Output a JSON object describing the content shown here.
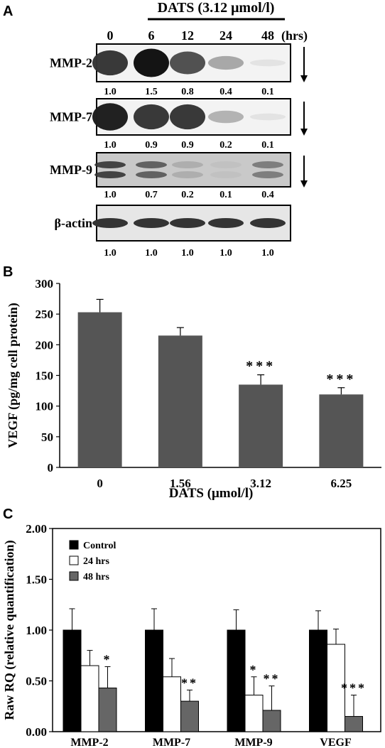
{
  "panel_a": {
    "letter": "A",
    "treatment_label": "DATS (3.12 μmol/l)",
    "time_labels": [
      "0",
      "6",
      "12",
      "24",
      "48"
    ],
    "time_unit": "(hrs)",
    "blots": [
      {
        "name": "MMP-2",
        "values": [
          "1.0",
          "1.5",
          "0.8",
          "0.4",
          "0.1"
        ],
        "levels": [
          0.85,
          1.0,
          0.75,
          0.35,
          0.05
        ],
        "arrow": true
      },
      {
        "name": "MMP-7",
        "values": [
          "1.0",
          "0.9",
          "0.9",
          "0.2",
          "0.1"
        ],
        "levels": [
          0.95,
          0.85,
          0.85,
          0.3,
          0.05
        ],
        "arrow": true
      },
      {
        "name": "MMP-9",
        "values": [
          "1.0",
          "0.7",
          "0.2",
          "0.1",
          "0.4"
        ],
        "levels": [
          0.85,
          0.7,
          0.3,
          0.2,
          0.55
        ],
        "arrow": true
      },
      {
        "name": "β-actin",
        "values": [
          "1.0",
          "1.0",
          "1.0",
          "1.0",
          "1.0"
        ],
        "levels": [
          0.85,
          0.85,
          0.85,
          0.85,
          0.85
        ],
        "arrow": false
      }
    ]
  },
  "chart_data": [
    {
      "panel": "B",
      "type": "bar",
      "categories": [
        "0",
        "1.56",
        "3.12",
        "6.25"
      ],
      "values": [
        253,
        215,
        135,
        119
      ],
      "errors": [
        21,
        13,
        16,
        11
      ],
      "significance": [
        "",
        "",
        "***",
        "***"
      ],
      "xlabel": "DATS (μmol/l)",
      "ylabel": "VEGF (pg/mg cell protein)",
      "ylim": [
        0,
        300
      ],
      "yticks": [
        "0",
        "50",
        "100",
        "150",
        "200",
        "250",
        "300"
      ],
      "color": "#555555"
    },
    {
      "panel": "C",
      "type": "bar",
      "categories": [
        "MMP-2",
        "MMP-7",
        "MMP-9",
        "VEGF"
      ],
      "series": [
        {
          "name": "Control",
          "color": "#000000",
          "values": [
            1.0,
            1.0,
            1.0,
            1.0
          ],
          "errors": [
            0.21,
            0.21,
            0.2,
            0.19
          ],
          "significance": [
            "",
            "",
            "",
            ""
          ]
        },
        {
          "name": "24 hrs",
          "color": "#ffffff",
          "values": [
            0.65,
            0.54,
            0.36,
            0.86
          ],
          "errors": [
            0.15,
            0.18,
            0.18,
            0.15
          ],
          "significance": [
            "",
            "",
            "*",
            ""
          ]
        },
        {
          "name": "48 hrs",
          "color": "#666666",
          "values": [
            0.43,
            0.3,
            0.21,
            0.15
          ],
          "errors": [
            0.21,
            0.11,
            0.24,
            0.21
          ],
          "significance": [
            "*",
            "**",
            "**",
            "***"
          ]
        }
      ],
      "ylabel": "Raw RQ (relative quantification)",
      "ylim": [
        0,
        2
      ],
      "yticks": [
        "0.00",
        "0.50",
        "1.00",
        "1.50",
        "2.00"
      ],
      "legend": "top-left"
    }
  ],
  "panel_b": {
    "letter": "B"
  },
  "panel_c": {
    "letter": "C"
  }
}
